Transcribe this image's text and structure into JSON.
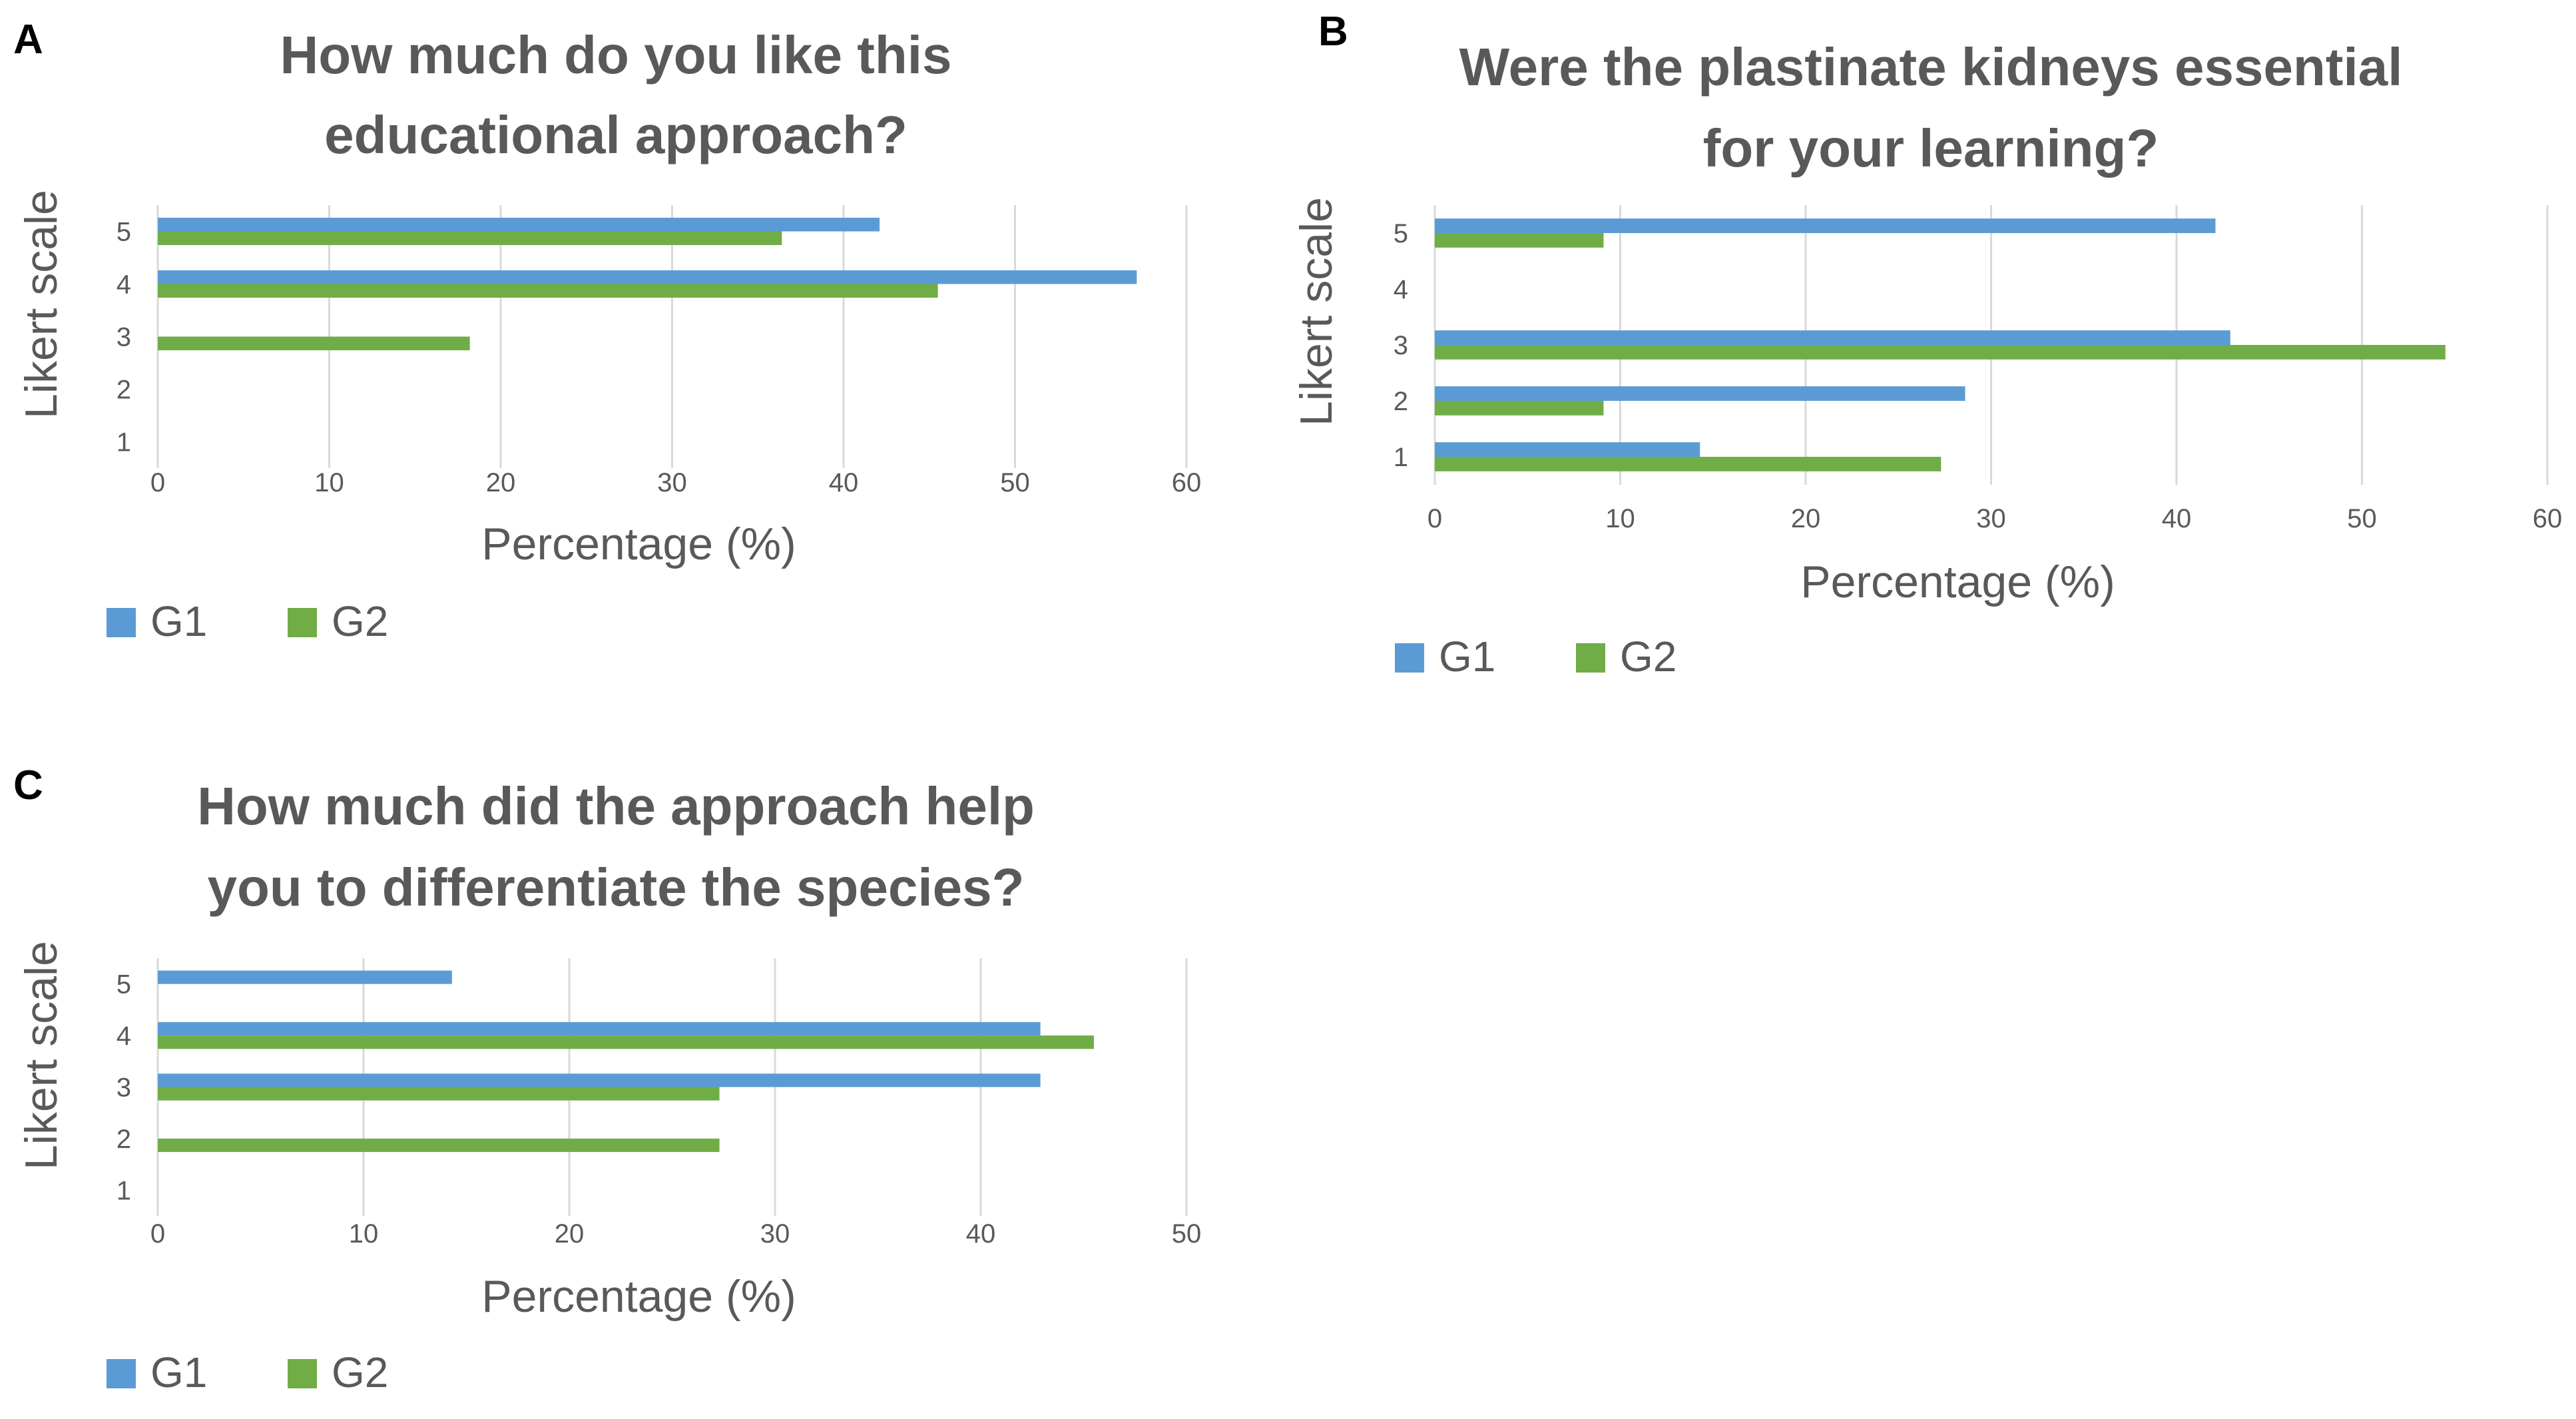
{
  "chart_data": [
    {
      "panel": "A",
      "type": "bar",
      "orientation": "horizontal",
      "title_lines": [
        "How much do you like this",
        "educational approach?"
      ],
      "xlabel": "Percentage (%)",
      "ylabel": "Likert scale",
      "categories": [
        "1",
        "2",
        "3",
        "4",
        "5"
      ],
      "xlim": [
        0,
        60
      ],
      "xticks": [
        0,
        10,
        20,
        30,
        40,
        50,
        60
      ],
      "grid": true,
      "legend": "bottom-left",
      "series": [
        {
          "name": "G1",
          "color": "#5b9bd5",
          "values": [
            0,
            0,
            0,
            57.1,
            42.1
          ]
        },
        {
          "name": "G2",
          "color": "#70ad47",
          "values": [
            0,
            0,
            18.2,
            45.5,
            36.4
          ]
        }
      ]
    },
    {
      "panel": "B",
      "type": "bar",
      "orientation": "horizontal",
      "title_lines": [
        "Were the plastinate kidneys essential",
        "for your learning?"
      ],
      "xlabel": "Percentage (%)",
      "ylabel": "Likert scale",
      "categories": [
        "1",
        "2",
        "3",
        "4",
        "5"
      ],
      "xlim": [
        0,
        60
      ],
      "xticks": [
        0,
        10,
        20,
        30,
        40,
        50,
        60
      ],
      "grid": true,
      "legend": "bottom-left",
      "series": [
        {
          "name": "G1",
          "color": "#5b9bd5",
          "values": [
            14.3,
            28.6,
            42.9,
            0,
            42.1
          ]
        },
        {
          "name": "G2",
          "color": "#70ad47",
          "values": [
            27.3,
            9.1,
            54.5,
            0,
            9.1
          ]
        }
      ]
    },
    {
      "panel": "C",
      "type": "bar",
      "orientation": "horizontal",
      "title_lines": [
        "How much did the approach help",
        "you to differentiate the species?"
      ],
      "xlabel": "Percentage (%)",
      "ylabel": "Likert scale",
      "categories": [
        "1",
        "2",
        "3",
        "4",
        "5"
      ],
      "xlim": [
        0,
        50
      ],
      "xticks": [
        0,
        10,
        20,
        30,
        40,
        50
      ],
      "grid": true,
      "legend": "bottom-left",
      "series": [
        {
          "name": "G1",
          "color": "#5b9bd5",
          "values": [
            0,
            0,
            42.9,
            42.9,
            14.3
          ]
        },
        {
          "name": "G2",
          "color": "#70ad47",
          "values": [
            0,
            27.3,
            27.3,
            45.5,
            0
          ]
        }
      ]
    }
  ]
}
